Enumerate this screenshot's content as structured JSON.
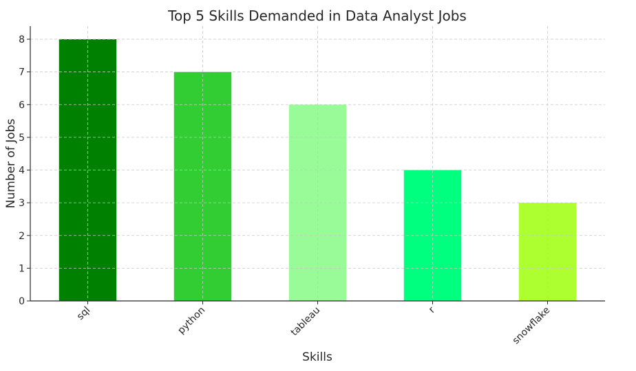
{
  "chart_data": {
    "type": "bar",
    "title": "Top 5 Skills Demanded in Data Analyst Jobs",
    "xlabel": "Skills",
    "ylabel": "Number of Jobs",
    "categories": [
      "sql",
      "python",
      "tableau",
      "r",
      "snowflake"
    ],
    "values": [
      8,
      7,
      6,
      4,
      3
    ],
    "colors": [
      "#008000",
      "#32cd32",
      "#98fb98",
      "#00ff7f",
      "#adff2f"
    ],
    "ylim": [
      0,
      8.4
    ],
    "yticks": [
      0,
      1,
      2,
      3,
      4,
      5,
      6,
      7,
      8
    ],
    "grid": true,
    "x_tick_rotation": 45
  }
}
